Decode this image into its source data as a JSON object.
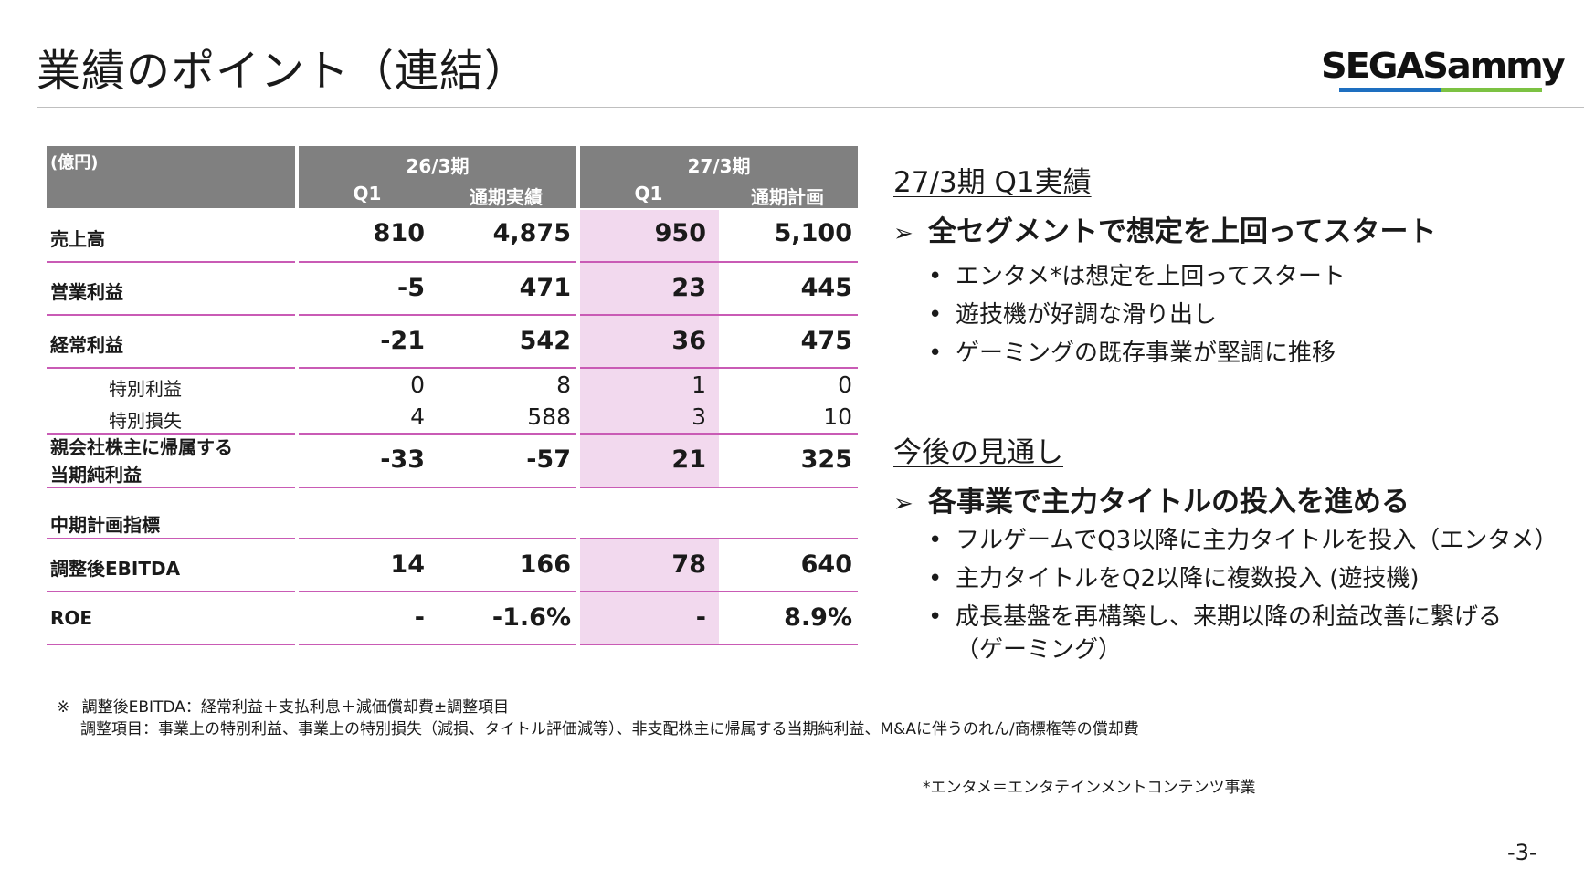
{
  "title": "業績のポイント（連結）",
  "logo": {
    "text": "SEGASammy",
    "colors": [
      "#1e6fc0",
      "#7cc243"
    ]
  },
  "table": {
    "unit": "(億円)",
    "periods": [
      {
        "label": "26/3期",
        "cols": [
          "Q1",
          "通期実績"
        ]
      },
      {
        "label": "27/3期",
        "cols": [
          "Q1",
          "通期計画"
        ]
      }
    ],
    "highlight_color": "#f2d9ee",
    "rows": [
      {
        "label": "売上高",
        "values": [
          "810",
          "4,875",
          "950",
          "5,100"
        ]
      },
      {
        "label": "営業利益",
        "values": [
          "-5",
          "471",
          "23",
          "445"
        ]
      },
      {
        "label": "経常利益",
        "values": [
          "-21",
          "542",
          "36",
          "475"
        ]
      },
      {
        "label": "特別利益",
        "values": [
          "0",
          "8",
          "1",
          "0"
        ]
      },
      {
        "label": "特別損失",
        "values": [
          "4",
          "588",
          "3",
          "10"
        ]
      },
      {
        "label_line1": "親会社株主に帰属する",
        "label_line2": "当期純利益",
        "values": [
          "-33",
          "-57",
          "21",
          "325"
        ]
      },
      {
        "label": "中期計画指標"
      },
      {
        "label": "調整後EBITDA",
        "values": [
          "14",
          "166",
          "78",
          "640"
        ]
      },
      {
        "label": "ROE",
        "values": [
          "-",
          "-1.6%",
          "-",
          "8.9%"
        ]
      }
    ]
  },
  "results": {
    "heading": "27/3期 Q1実績",
    "point": "全セグメントで想定を上回ってスタート",
    "bullets": [
      "エンタメ*は想定を上回ってスタート",
      "遊技機が好調な滑り出し",
      "ゲーミングの既存事業が堅調に推移"
    ]
  },
  "outlook": {
    "heading": "今後の見通し",
    "point": "各事業で主力タイトルの投入を進める",
    "bullets": [
      "フルゲームでQ3以降に主力タイトルを投入（エンタメ）",
      "主力タイトルをQ2以降に複数投入 (遊技機)",
      "成長基盤を再構築し、来期以降の利益改善に繋げる",
      "（ゲーミング）"
    ]
  },
  "notes": {
    "mark": "※",
    "line1": "調整後EBITDA：経常利益＋支払利息＋減価償却費±調整項目",
    "line2": "調整項目：事業上の特別利益、事業上の特別損失（減損、タイトル評価減等）、非支配株主に帰属する当期純利益、M&Aに伴うのれん/商標権等の償却費",
    "footnote": "*エンタメ＝エンタテインメントコンテンツ事業"
  },
  "page_number": "-3-",
  "bullet_symbol": "•",
  "arrow_symbol": "➢"
}
